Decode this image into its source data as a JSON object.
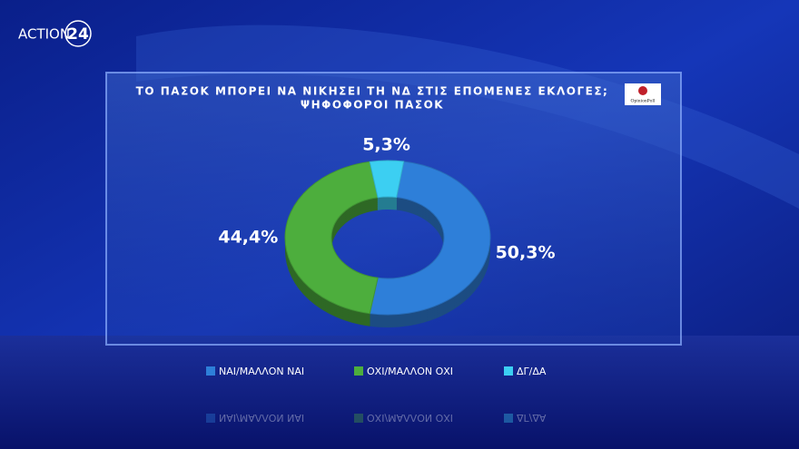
{
  "brand": {
    "name": "ACTION",
    "number": "24"
  },
  "source": "OpinionPoll",
  "chart_data": {
    "type": "pie",
    "donut": true,
    "title": "ΤΟ ΠΑΣΟΚ ΜΠΟΡΕΙ ΝΑ ΝΙΚΗΣΕΙ ΤΗ ΝΔ ΣΤΙΣ ΕΠΟΜΕΝΕΣ ΕΚΛΟΓΕΣ;",
    "subtitle": "ΨΗΦΟΦΟΡΟΙ ΠΑΣΟΚ",
    "categories": [
      "ΝΑΙ/ΜΑΛΛΟΝ ΝΑΙ",
      "ΟΧΙ/ΜΑΛΛΟΝ ΟΧΙ",
      "ΔΓ/ΔΑ"
    ],
    "values": [
      50.3,
      44.4,
      5.3
    ],
    "value_labels": [
      "50,3%",
      "44,4%",
      "5,3%"
    ],
    "colors": [
      "#2e7fd9",
      "#4dae3d",
      "#3ccff2"
    ]
  }
}
